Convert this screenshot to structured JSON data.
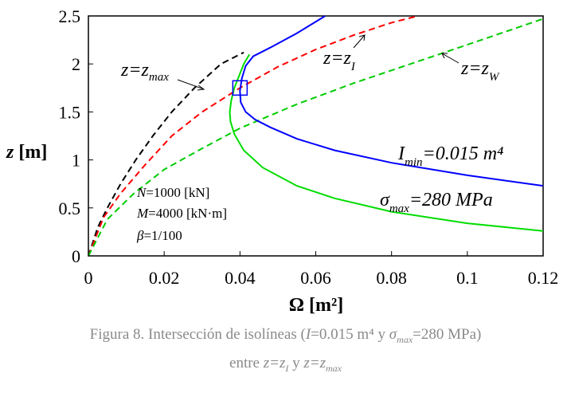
{
  "chart_data": {
    "type": "line",
    "xlabel": "Ω [m²]",
    "xlim": [
      0,
      0.12
    ],
    "ylim": [
      0,
      2.5
    ],
    "xticks": [
      "0",
      "0.02",
      "0.04",
      "0.06",
      "0.08",
      "0.1",
      "0.12"
    ],
    "yticks": [
      "0",
      "0.5",
      "1",
      "1.5",
      "2",
      "2.5"
    ],
    "grid": false,
    "series": [
      {
        "name": "z=z_max",
        "style": "dashed",
        "color": "#000000",
        "points": [
          [
            0,
            0
          ],
          [
            0.0025,
            0.3
          ],
          [
            0.005,
            0.5
          ],
          [
            0.0085,
            0.75
          ],
          [
            0.0125,
            1.0
          ],
          [
            0.017,
            1.25
          ],
          [
            0.022,
            1.5
          ],
          [
            0.028,
            1.75
          ],
          [
            0.035,
            2.0
          ],
          [
            0.041,
            2.12
          ]
        ]
      },
      {
        "name": "z=z_I",
        "style": "dashed",
        "color": "#ff0000",
        "points": [
          [
            0,
            0
          ],
          [
            0.004,
            0.4
          ],
          [
            0.0085,
            0.65
          ],
          [
            0.015,
            0.95
          ],
          [
            0.022,
            1.25
          ],
          [
            0.03,
            1.5
          ],
          [
            0.04,
            1.75
          ],
          [
            0.05,
            1.97
          ],
          [
            0.06,
            2.15
          ],
          [
            0.07,
            2.3
          ],
          [
            0.08,
            2.43
          ],
          [
            0.087,
            2.5
          ]
        ]
      },
      {
        "name": "z=z_W",
        "style": "dashed",
        "color": "#00cc00",
        "points": [
          [
            0,
            0
          ],
          [
            0.005,
            0.38
          ],
          [
            0.012,
            0.65
          ],
          [
            0.02,
            0.9
          ],
          [
            0.03,
            1.12
          ],
          [
            0.04,
            1.33
          ],
          [
            0.055,
            1.58
          ],
          [
            0.07,
            1.8
          ],
          [
            0.085,
            2.0
          ],
          [
            0.1,
            2.2
          ],
          [
            0.12,
            2.47
          ]
        ]
      },
      {
        "name": "I_min=0.015 m⁴",
        "style": "solid",
        "color": "#0000ff",
        "points": [
          [
            0.0625,
            2.5
          ],
          [
            0.055,
            2.32
          ],
          [
            0.048,
            2.17
          ],
          [
            0.0435,
            2.08
          ],
          [
            0.0415,
            1.98
          ],
          [
            0.0405,
            1.85
          ],
          [
            0.04,
            1.72
          ],
          [
            0.0402,
            1.6
          ],
          [
            0.0415,
            1.5
          ],
          [
            0.044,
            1.42
          ],
          [
            0.048,
            1.34
          ],
          [
            0.055,
            1.22
          ],
          [
            0.065,
            1.1
          ],
          [
            0.08,
            0.97
          ],
          [
            0.1,
            0.84
          ],
          [
            0.12,
            0.73
          ]
        ]
      },
      {
        "name": "σ_max=280 MPa",
        "style": "solid",
        "color": "#00dd00",
        "points": [
          [
            0.0425,
            2.1
          ],
          [
            0.041,
            2.0
          ],
          [
            0.0395,
            1.85
          ],
          [
            0.0385,
            1.75
          ],
          [
            0.0377,
            1.62
          ],
          [
            0.0373,
            1.5
          ],
          [
            0.0375,
            1.4
          ],
          [
            0.0385,
            1.27
          ],
          [
            0.041,
            1.1
          ],
          [
            0.046,
            0.92
          ],
          [
            0.055,
            0.73
          ],
          [
            0.065,
            0.6
          ],
          [
            0.08,
            0.46
          ],
          [
            0.1,
            0.34
          ],
          [
            0.12,
            0.26
          ]
        ]
      }
    ],
    "intersection_marker": {
      "x": 0.04,
      "y": 1.75,
      "shape": "square",
      "color": "#0000ff"
    },
    "annotations": {
      "zmax": {
        "main": "z=z",
        "sub": "max"
      },
      "zI": {
        "main": "z=z",
        "sub": "I"
      },
      "zW": {
        "main": "z=z",
        "sub": "W"
      },
      "imin": {
        "main_a": "I",
        "sub": "min",
        "main_b": "=0.015 m⁴"
      },
      "sigma": {
        "main_a": "σ",
        "sub": "max",
        "main_b": "=280 MPa"
      }
    },
    "parameters": [
      {
        "symbol": "N",
        "text": "=1000 [kN]"
      },
      {
        "symbol": "M",
        "text": "=4000 [kN·m]"
      },
      {
        "symbol": "β",
        "text": "=1/100"
      }
    ],
    "ylabel_parts": {
      "symbol": "z",
      "unit": " [m]"
    }
  },
  "caption": {
    "line1_a": "Figura 8. Intersección de isolíneas (",
    "line1_I": "I",
    "line1_b": "=0.015 m⁴ y ",
    "line1_sigma": "σ",
    "line1_sigma_sub": "max",
    "line1_c": "=280 MPa)",
    "line2_a": "entre ",
    "line2_z1": "z=z",
    "line2_z1_sub": "I",
    "line2_y": " y ",
    "line2_z2": "z=z",
    "line2_z2_sub": "max"
  }
}
